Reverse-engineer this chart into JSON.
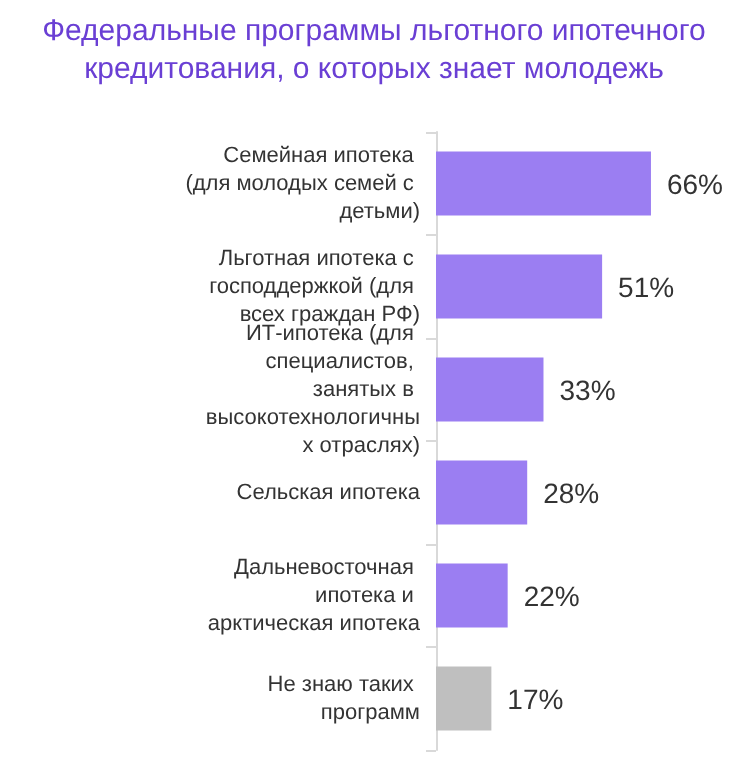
{
  "chart_data": {
    "type": "bar",
    "orientation": "horizontal",
    "title": "Федеральные программы льготного ипотечного кредитования, о которых знает молодежь",
    "categories": [
      "Семейная ипотека (для молодых семей с детьми)",
      "Льготная ипотека с господдержкой (для всех граждан РФ)",
      "ИТ-ипотека (для специалистов, занятых в высокотехнологичных отраслях)",
      "Сельская ипотека",
      "Дальневосточная ипотека и арктическая ипотека",
      "Не знаю таких программ"
    ],
    "values": [
      66,
      51,
      33,
      28,
      22,
      17
    ],
    "colors": [
      "#9b7ef2",
      "#9b7ef2",
      "#9b7ef2",
      "#9b7ef2",
      "#9b7ef2",
      "#bfbfbf"
    ],
    "value_labels": [
      "66%",
      "51%",
      "33%",
      "28%",
      "22%",
      "17%"
    ],
    "grid": false
  }
}
